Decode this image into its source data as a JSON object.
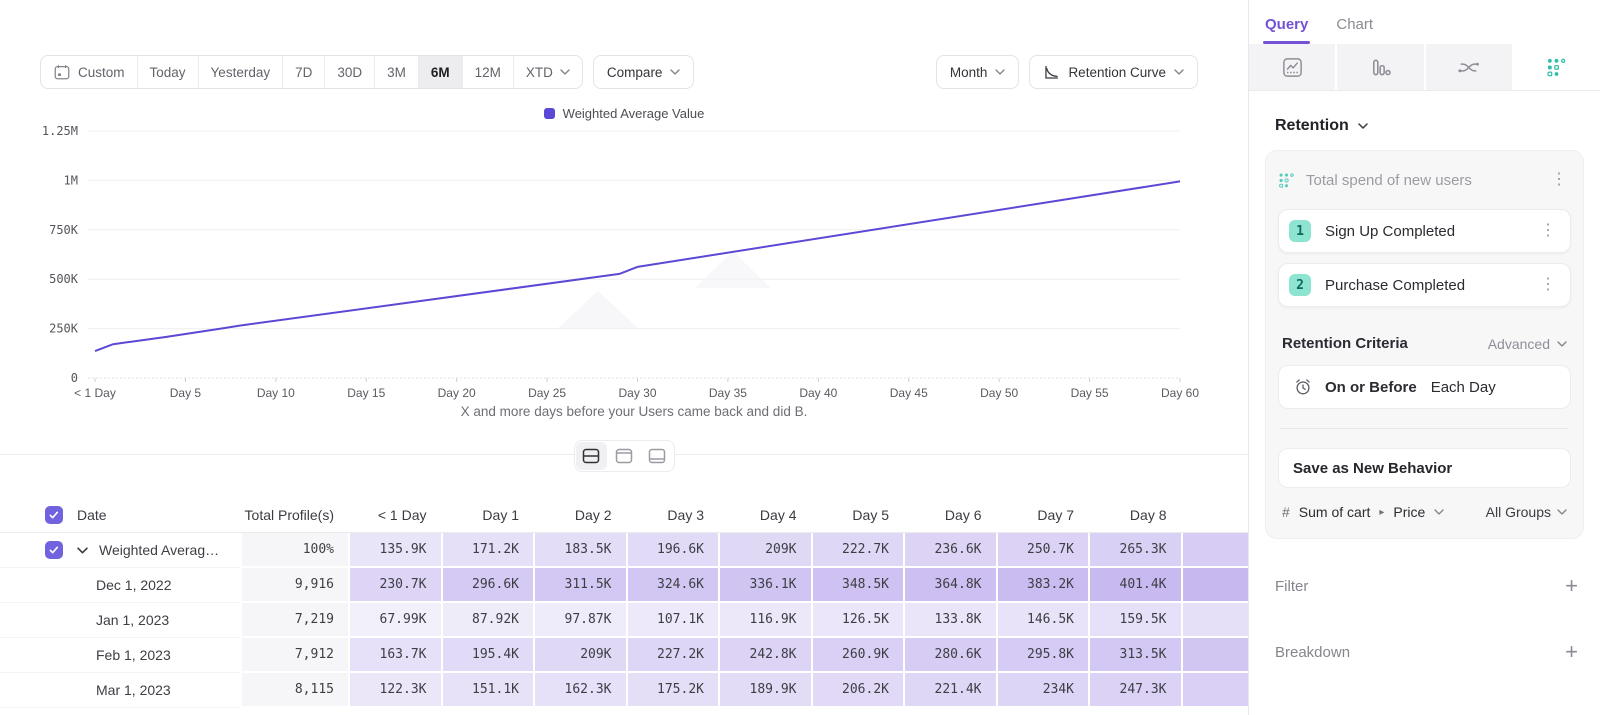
{
  "toolbar": {
    "date_ranges": [
      "Custom",
      "Today",
      "Yesterday",
      "7D",
      "30D",
      "3M",
      "6M",
      "12M",
      "XTD"
    ],
    "selected_range": "6M",
    "compare_label": "Compare",
    "granularity_label": "Month",
    "chart_type_label": "Retention Curve"
  },
  "chart_data": {
    "type": "line",
    "legend_position": "top",
    "grid": "horizontal",
    "series": [
      {
        "name": "Weighted Average Value",
        "color": "#5b49d6",
        "points": [
          [
            0,
            135900
          ],
          [
            1,
            171200
          ],
          [
            2,
            183500
          ],
          [
            3,
            196600
          ],
          [
            4,
            209000
          ],
          [
            5,
            222700
          ],
          [
            6,
            236600
          ],
          [
            7,
            250700
          ],
          [
            8,
            265300
          ],
          [
            29,
            527000
          ],
          [
            30,
            562000
          ],
          [
            60,
            995000
          ]
        ]
      }
    ],
    "x_ticks": [
      "< 1 Day",
      "Day 5",
      "Day 10",
      "Day 15",
      "Day 20",
      "Day 25",
      "Day 30",
      "Day 35",
      "Day 40",
      "Day 45",
      "Day 50",
      "Day 55",
      "Day 60"
    ],
    "x_tick_days": [
      0,
      5,
      10,
      15,
      20,
      25,
      30,
      35,
      40,
      45,
      50,
      55,
      60
    ],
    "y_ticks": [
      "0",
      "250K",
      "500K",
      "750K",
      "1M",
      "1.25M"
    ],
    "y_tick_values": [
      0,
      250000,
      500000,
      750000,
      1000000,
      1250000
    ],
    "xlim": [
      0,
      60
    ],
    "ylim": [
      0,
      1250000
    ],
    "xlabel": "X and more days before your Users came back and did B.",
    "ylabel": ""
  },
  "view_toggle": {
    "options": [
      "split-view",
      "chart-view",
      "table-view"
    ],
    "selected_index": 0
  },
  "table": {
    "columns": [
      "Date",
      "Total Profile(s)",
      "< 1 Day",
      "Day 1",
      "Day 2",
      "Day 3",
      "Day 4",
      "Day 5",
      "Day 6",
      "Day 7",
      "Day 8"
    ],
    "rows": [
      {
        "date": "Weighted Average ...",
        "expandable": true,
        "checked": true,
        "total": "100%",
        "values": [
          "135.9K",
          "171.2K",
          "183.5K",
          "196.6K",
          "209K",
          "222.7K",
          "236.6K",
          "250.7K",
          "265.3K"
        ]
      },
      {
        "date": "Dec 1, 2022",
        "expandable": false,
        "total": "9,916",
        "values": [
          "230.7K",
          "296.6K",
          "311.5K",
          "324.6K",
          "336.1K",
          "348.5K",
          "364.8K",
          "383.2K",
          "401.4K"
        ]
      },
      {
        "date": "Jan 1, 2023",
        "expandable": false,
        "total": "7,219",
        "values": [
          "67.99K",
          "87.92K",
          "97.87K",
          "107.1K",
          "116.9K",
          "126.5K",
          "133.8K",
          "146.5K",
          "159.5K"
        ]
      },
      {
        "date": "Feb 1, 2023",
        "expandable": false,
        "total": "7,912",
        "values": [
          "163.7K",
          "195.4K",
          "209K",
          "227.2K",
          "242.8K",
          "260.9K",
          "280.6K",
          "295.8K",
          "313.5K"
        ]
      },
      {
        "date": "Mar 1, 2023",
        "expandable": false,
        "total": "8,115",
        "values": [
          "122.3K",
          "151.1K",
          "162.3K",
          "175.2K",
          "189.9K",
          "206.2K",
          "221.4K",
          "234K",
          "247.3K"
        ]
      }
    ]
  },
  "panel": {
    "tabs": [
      {
        "label": "Query",
        "active": true
      },
      {
        "label": "Chart",
        "active": false
      }
    ],
    "chart_type_icons": [
      "insights",
      "funnels",
      "flows",
      "retention"
    ],
    "selected_chart_type": "retention",
    "section_label": "Retention",
    "behavior": {
      "title": "Total spend of new users",
      "steps": [
        {
          "num": "1",
          "label": "Sign Up Completed"
        },
        {
          "num": "2",
          "label": "Purchase Completed"
        }
      ]
    },
    "criteria": {
      "label": "Retention Criteria",
      "mode": "Advanced",
      "condition": "On or Before",
      "window": "Each Day"
    },
    "save_button": "Save as New Behavior",
    "measure": {
      "prefix": "#",
      "label": "Sum of cart",
      "caret": "▸",
      "property": "Price",
      "groups": "All Groups"
    },
    "filter_label": "Filter",
    "breakdown_label": "Breakdown"
  },
  "colors": {
    "accent_purple": "#5b49d6",
    "checkbox_purple": "#7163dd",
    "tab_purple": "#7452d6",
    "teal": "#2fbfa8",
    "badge_teal_bg": "#8ce4d1",
    "badge_teal_text": "#0c6b5a",
    "cell_shade_low": "#f3f1fb",
    "cell_shade_high": "#c7b8f0",
    "total_col_bg": "#f6f6f8"
  }
}
